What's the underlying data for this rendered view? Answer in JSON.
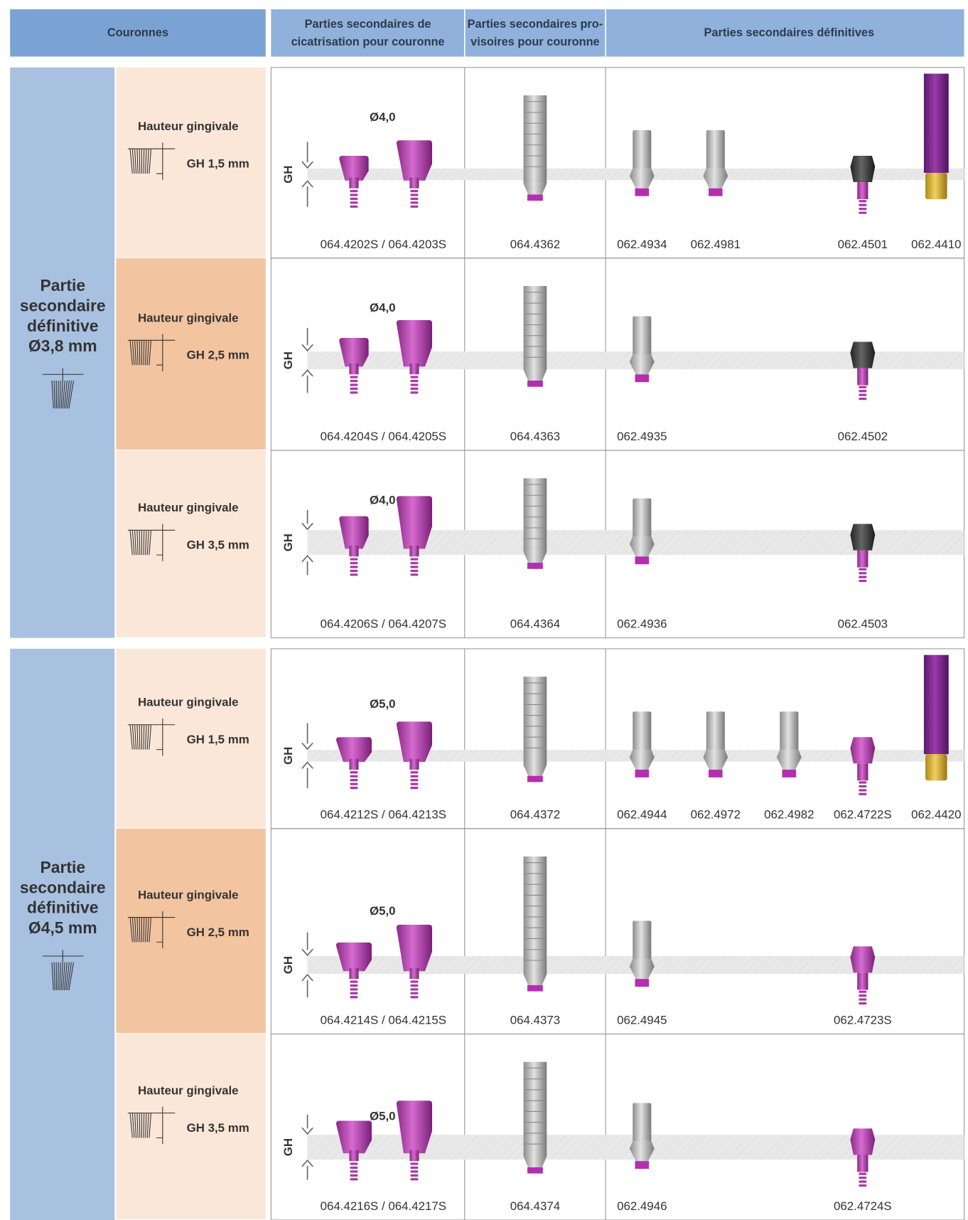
{
  "header": [
    "Couronnes",
    "Parties secondaires de",
    "cicatrisation pour couronne",
    "Parties secondaires pro-",
    "visoires pour couronne",
    "Parties secondaires définitives"
  ],
  "groups": [
    {
      "label": [
        "Partie",
        "secondaire",
        "définitive",
        "Ø3,8 mm"
      ],
      "rows": [
        {
          "label": "Hauteur gingivale",
          "gh": "GH 1,5 mm",
          "axis": "GH",
          "diameter": "Ø4,0",
          "healing": "064.4202S / 064.4203S",
          "provisional": "064.4362",
          "definitive": [
            "062.4934",
            "062.4981",
            null,
            "062.4501",
            "062.4410"
          ]
        },
        {
          "label": "Hauteur gingivale",
          "gh": "GH 2,5 mm",
          "axis": "GH",
          "diameter": "Ø4,0",
          "healing": "064.4204S / 064.4205S",
          "provisional": "064.4363",
          "definitive": [
            "062.4935",
            null,
            null,
            "062.4502",
            null
          ]
        },
        {
          "label": "Hauteur gingivale",
          "gh": "GH 3,5 mm",
          "axis": "GH",
          "diameter": "Ø4,0",
          "healing": "064.4206S / 064.4207S",
          "provisional": "064.4364",
          "definitive": [
            "062.4936",
            null,
            null,
            "062.4503",
            null
          ]
        }
      ]
    },
    {
      "label": [
        "Partie",
        "secondaire",
        "définitive",
        "Ø4,5 mm"
      ],
      "rows": [
        {
          "label": "Hauteur gingivale",
          "gh": "GH 1,5 mm",
          "axis": "GH",
          "diameter": "Ø5,0",
          "healing": "064.4212S / 064.4213S",
          "provisional": "064.4372",
          "definitive": [
            "062.4944",
            "062.4972",
            "062.4982",
            "062.4722S",
            "062.4420"
          ]
        },
        {
          "label": "Hauteur gingivale",
          "gh": "GH 2,5 mm",
          "axis": "GH",
          "diameter": "Ø5,0",
          "healing": "064.4214S / 064.4215S",
          "provisional": "064.4373",
          "definitive": [
            "062.4945",
            null,
            null,
            "062.4723S",
            null
          ]
        },
        {
          "label": "Hauteur gingivale",
          "gh": "GH 3,5 mm",
          "axis": "GH",
          "diameter": "Ø5,0",
          "healing": "064.4216S / 064.4217S",
          "provisional": "064.4374",
          "definitive": [
            "062.4946",
            null,
            null,
            "062.4724S",
            null
          ]
        }
      ]
    }
  ]
}
